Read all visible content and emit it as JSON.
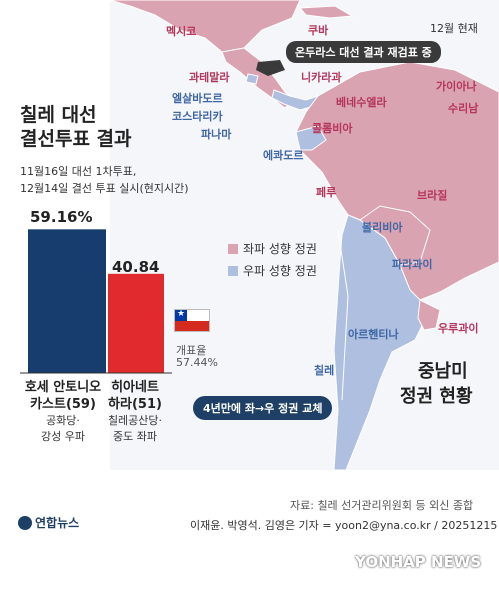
{
  "header": {
    "date": "12월 현재",
    "honduras_note": "온두라스 대선 결과 재검표 중"
  },
  "title": {
    "line1": "칠레 대선",
    "line2": "결선투표 결과"
  },
  "subtitle": {
    "line1": "11월16일 대선 1차투표,",
    "line2": "12월14일 결선 투표 실시(현지시간)"
  },
  "chart_data": {
    "type": "bar",
    "title": "칠레 대선 결선투표 결과",
    "unit": "%",
    "categories": [
      "호세 안토니오 카스트(59)",
      "히아네트 하라(51)"
    ],
    "values": [
      59.16,
      40.84
    ],
    "value_labels": [
      "59.16%",
      "40.84"
    ],
    "colors": [
      "#163d6e",
      "#e02a2e"
    ],
    "ylim": [
      0,
      70
    ],
    "grid": false,
    "legend": "none"
  },
  "candidates": [
    {
      "name_line1": "호세 안토니오",
      "name_line2": "카스트(59)",
      "party_line1": "공화당·",
      "party_line2": "강성 우파"
    },
    {
      "name_line1": "히아네트",
      "name_line2": "하라(51)",
      "party_line1": "칠레공산당·",
      "party_line2": "중도 좌파"
    }
  ],
  "count": {
    "label": "개표율",
    "value": "57.44%"
  },
  "legend": {
    "left": "좌파 성향 정권",
    "right": "우파 성향 정권",
    "left_color": "#d9a3b1",
    "right_color": "#aebfdf"
  },
  "map": {
    "countries_left": [
      "멕시코",
      "쿠바",
      "과테말라",
      "니카라과",
      "베네수엘라",
      "가이아나",
      "수리남",
      "콜롬비아",
      "페루",
      "브라질",
      "우루과이"
    ],
    "countries_right": [
      "엘살바도르",
      "코스타리카",
      "파나마",
      "에콰도르",
      "볼리비아",
      "파라과이",
      "아르헨티나",
      "칠레"
    ]
  },
  "region_title": {
    "line1": "중남미",
    "line2": "정권 현황"
  },
  "change_note": "4년만에 좌→우 정권 교체",
  "footer": {
    "source": "자료: 칠레 선거관리위원회 등 외신 종합",
    "credit": "이재윤. 박영석. 김영은 기자 = yoon2@yna.co.kr / 20251215",
    "logo": "연합뉴스",
    "watermark": "YONHAP NEWS"
  }
}
